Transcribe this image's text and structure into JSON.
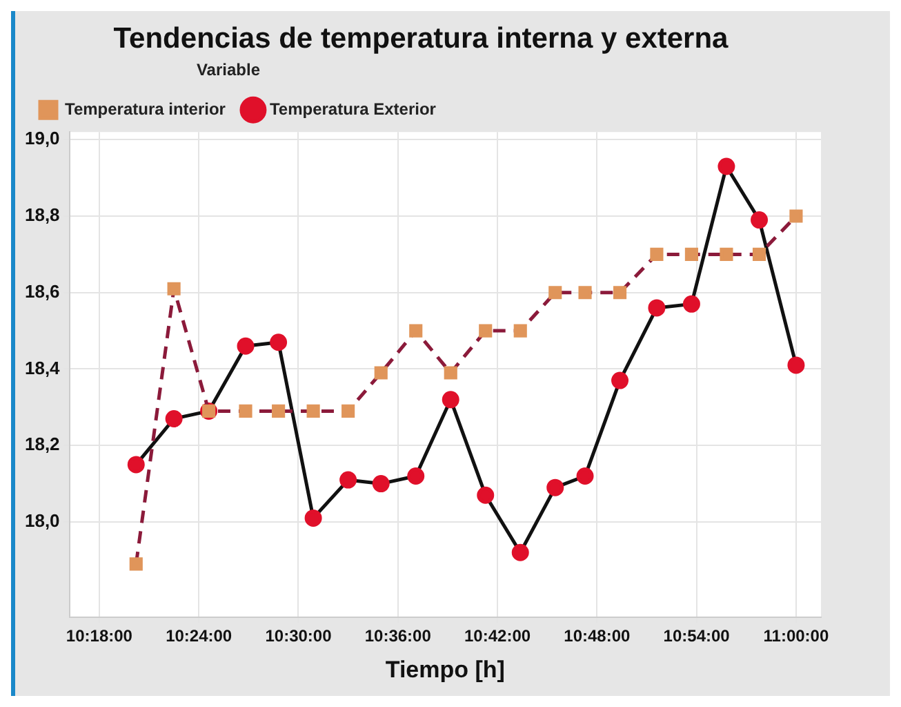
{
  "chart_data": {
    "type": "line",
    "title": "Tendencias de temperatura interna y externa",
    "xlabel": "Tiempo [h]",
    "legend_title": "Variable",
    "legend": "top left",
    "grid": true,
    "x": [
      10.337,
      10.375,
      10.41,
      10.447,
      10.48,
      10.515,
      10.55,
      10.583,
      10.618,
      10.653,
      10.688,
      10.723,
      10.758,
      10.788,
      10.823,
      10.86,
      10.895,
      10.93,
      10.963,
      11.0
    ],
    "xlim": [
      10.27,
      11.025
    ],
    "xticks": [
      {
        "value": 10.3,
        "label": "10:18:00"
      },
      {
        "value": 10.4,
        "label": "10:24:00"
      },
      {
        "value": 10.5,
        "label": "10:30:00"
      },
      {
        "value": 10.6,
        "label": "10:36:00"
      },
      {
        "value": 10.7,
        "label": "10:42:00"
      },
      {
        "value": 10.8,
        "label": "10:48:00"
      },
      {
        "value": 10.9,
        "label": "10:54:00"
      },
      {
        "value": 11.0,
        "label": "11:00:00"
      }
    ],
    "ylim": [
      17.75,
      19.02
    ],
    "yticks": [
      {
        "value": 18.0,
        "label": "18,0"
      },
      {
        "value": 18.2,
        "label": "18,2"
      },
      {
        "value": 18.4,
        "label": "18,4"
      },
      {
        "value": 18.6,
        "label": "18,6"
      },
      {
        "value": 18.8,
        "label": "18,8"
      },
      {
        "value": 19.0,
        "label": "19,0"
      }
    ],
    "series": [
      {
        "name": "Temperatura Exterior",
        "color": "#111111",
        "marker": "circle",
        "line_style": "solid",
        "colors": [
          "#e0102a",
          "#e0102a",
          "#e0102a",
          "#e0102a",
          "#e0102a",
          "#e0102a",
          "#e0102a",
          "#e0102a",
          "#e0102a",
          "#e0102a",
          "#e0102a",
          "#e0102a",
          "#e0102a",
          "#e0102a",
          "#e0102a",
          "#e0102a",
          "#e0102a",
          "#e0102a",
          "#e0102a",
          "#e0102a"
        ],
        "values": [
          18.15,
          18.27,
          18.29,
          18.46,
          18.47,
          18.01,
          18.11,
          18.1,
          18.12,
          18.32,
          18.07,
          17.92,
          18.09,
          18.12,
          18.37,
          18.56,
          18.57,
          18.93,
          18.79,
          18.41
        ]
      },
      {
        "name": "Temperatura interior",
        "color": "#8b1a3a",
        "marker": "square",
        "line_style": "dashed",
        "colors": [
          "#e0955a",
          "#e0955a",
          "#e0955a",
          "#e0955a",
          "#e0955a",
          "#e0955a",
          "#e0955a",
          "#e0955a",
          "#e0955a",
          "#e0955a",
          "#e0955a",
          "#e0955a",
          "#e0955a",
          "#e0955a",
          "#e0955a",
          "#e0955a",
          "#e0955a",
          "#e0955a",
          "#e0955a",
          "#e0955a"
        ],
        "values": [
          17.89,
          18.61,
          18.29,
          18.29,
          18.29,
          18.29,
          18.29,
          18.39,
          18.5,
          18.39,
          18.5,
          18.5,
          18.6,
          18.6,
          18.6,
          18.7,
          18.7,
          18.7,
          18.7,
          18.8
        ]
      }
    ]
  }
}
